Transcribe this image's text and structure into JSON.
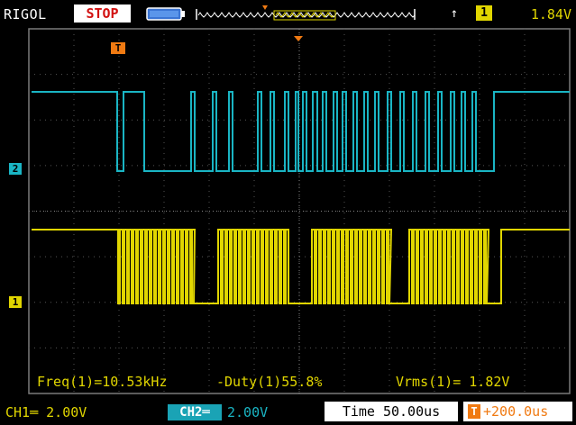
{
  "header": {
    "brand": "RIGOL",
    "run_state": "STOP",
    "trigger_edge_icon": "rising-edge-icon",
    "trigger_source": "1",
    "trigger_level": "1.84V"
  },
  "measurements": {
    "freq": "Freq(1)=10.53kHz",
    "duty": "-Duty(1)55.8%",
    "vrms": "Vrms(1)= 1.82V"
  },
  "status": {
    "ch1_scale": "CH1═ 2.00V",
    "ch2_label": "CH2═",
    "ch2_scale": "2.00V",
    "timebase": "Time 50.00us",
    "trigger_offset": "+200.0us"
  },
  "markers": {
    "trigger_marker": "T",
    "ch2_marker": "2",
    "ch1_marker": "1"
  },
  "colors": {
    "ch1": "#e1d600",
    "ch2": "#1ab5c4",
    "trigger": "#f07a12",
    "grid": "#7a7a7a"
  }
}
